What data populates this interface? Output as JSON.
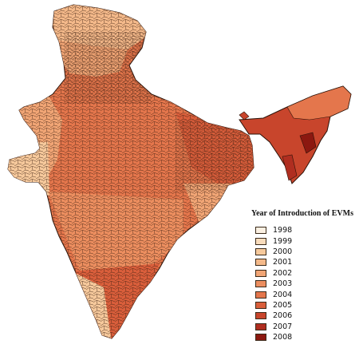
{
  "legend": {
    "title": "Year of Introduction of EVMs",
    "items": [
      {
        "label": "1998",
        "color": "#fbf0e2"
      },
      {
        "label": "1999",
        "color": "#f9dcbc"
      },
      {
        "label": "2000",
        "color": "#f6c99c"
      },
      {
        "label": "2001",
        "color": "#f4b98a"
      },
      {
        "label": "2002",
        "color": "#f1a575"
      },
      {
        "label": "2003",
        "color": "#ec8e5f"
      },
      {
        "label": "2004",
        "color": "#e4764c"
      },
      {
        "label": "2005",
        "color": "#d95e3b"
      },
      {
        "label": "2006",
        "color": "#c8452c"
      },
      {
        "label": "2007",
        "color": "#b02e20"
      },
      {
        "label": "2008",
        "color": "#8c1810"
      }
    ]
  }
}
